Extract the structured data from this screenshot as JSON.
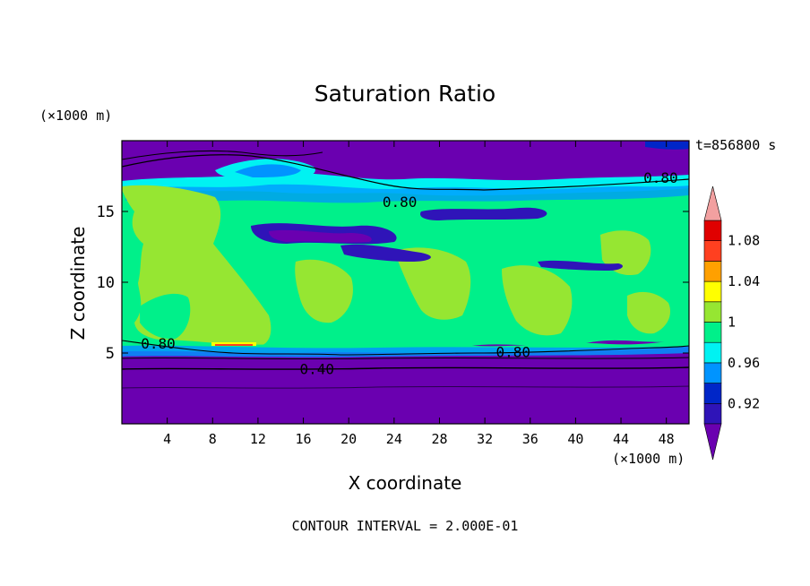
{
  "chart_data": {
    "type": "heatmap",
    "title": "Saturation Ratio",
    "xlabel": "X coordinate",
    "ylabel": "Z coordinate",
    "x_unit": "(×1000 m)",
    "y_unit": "(×1000 m)",
    "time_label": "t=856800 s",
    "footer": "CONTOUR INTERVAL = 2.000E-01",
    "xlim": [
      0,
      50
    ],
    "ylim": [
      0,
      20
    ],
    "x_ticks": [
      4,
      8,
      12,
      16,
      20,
      24,
      28,
      32,
      36,
      40,
      44,
      48
    ],
    "y_ticks": [
      5,
      10,
      15
    ],
    "contour_labels": [
      {
        "text": "0.80",
        "x": 47.5,
        "y": 17.4
      },
      {
        "text": "0.80",
        "x": 24.5,
        "y": 15.7
      },
      {
        "text": "0.80",
        "x": 3.2,
        "y": 5.7
      },
      {
        "text": "0.80",
        "x": 34.5,
        "y": 5.1
      },
      {
        "text": "0.40",
        "x": 17.2,
        "y": 3.9
      }
    ],
    "colorbar": {
      "levels": [
        0.9,
        0.92,
        0.94,
        0.96,
        0.98,
        1.0,
        1.02,
        1.04,
        1.06,
        1.08,
        1.1
      ],
      "labels": [
        "0.92",
        "0.96",
        "1",
        "1.04",
        "1.08"
      ],
      "label_values": [
        0.92,
        0.96,
        1.0,
        1.04,
        1.08
      ],
      "colors": [
        "#6a00b0",
        "#2f14b8",
        "#0026c8",
        "#0094ff",
        "#00f2f2",
        "#00f08a",
        "#96e632",
        "#ffff00",
        "#ffa000",
        "#ff4020",
        "#e00000",
        "#f2a0a0"
      ],
      "extend": "both"
    }
  }
}
